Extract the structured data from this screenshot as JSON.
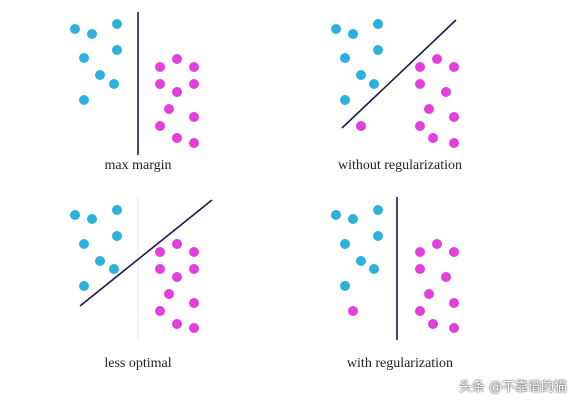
{
  "colors": {
    "class_a": "#2bb1dc",
    "class_b": "#e23fdc",
    "line": "#1a1a4a",
    "faint_line": "#e6e6e6"
  },
  "panels": [
    {
      "id": "max-margin",
      "caption": "max margin",
      "boundary": "vertical",
      "points_a": [
        [
          75,
          29
        ],
        [
          92,
          34
        ],
        [
          117,
          24
        ],
        [
          84,
          58
        ],
        [
          117,
          50
        ],
        [
          100,
          75
        ],
        [
          114,
          84
        ],
        [
          84,
          100
        ]
      ],
      "points_b": [
        [
          160,
          67
        ],
        [
          177,
          59
        ],
        [
          194,
          67
        ],
        [
          160,
          84
        ],
        [
          194,
          84
        ],
        [
          177,
          92
        ],
        [
          169,
          109
        ],
        [
          194,
          117
        ],
        [
          160,
          126
        ],
        [
          177,
          138
        ],
        [
          194,
          143
        ]
      ]
    },
    {
      "id": "without-regularization",
      "caption": "without regularization",
      "boundary": "diagonal",
      "points_a": [
        [
          336,
          29
        ],
        [
          353,
          34
        ],
        [
          378,
          24
        ],
        [
          345,
          58
        ],
        [
          378,
          50
        ],
        [
          361,
          75
        ],
        [
          374,
          84
        ],
        [
          345,
          100
        ]
      ],
      "points_b": [
        [
          361,
          126
        ],
        [
          420,
          67
        ],
        [
          437,
          59
        ],
        [
          454,
          67
        ],
        [
          420,
          84
        ],
        [
          446,
          92
        ],
        [
          429,
          109
        ],
        [
          454,
          117
        ],
        [
          420,
          126
        ],
        [
          433,
          138
        ],
        [
          454,
          143
        ]
      ]
    },
    {
      "id": "less-optimal",
      "caption": "less optimal",
      "boundary": "diagonal",
      "points_a": [
        [
          75,
          215
        ],
        [
          92,
          219
        ],
        [
          117,
          210
        ],
        [
          84,
          244
        ],
        [
          117,
          236
        ],
        [
          100,
          261
        ],
        [
          114,
          269
        ],
        [
          84,
          286
        ]
      ],
      "points_b": [
        [
          160,
          252
        ],
        [
          177,
          244
        ],
        [
          194,
          252
        ],
        [
          160,
          269
        ],
        [
          194,
          269
        ],
        [
          177,
          277
        ],
        [
          169,
          294
        ],
        [
          194,
          303
        ],
        [
          160,
          311
        ],
        [
          177,
          324
        ],
        [
          194,
          328
        ]
      ]
    },
    {
      "id": "with-regularization",
      "caption": "with regularization",
      "boundary": "vertical",
      "points_a": [
        [
          336,
          215
        ],
        [
          353,
          219
        ],
        [
          378,
          210
        ],
        [
          345,
          244
        ],
        [
          378,
          236
        ],
        [
          361,
          261
        ],
        [
          374,
          269
        ],
        [
          345,
          286
        ]
      ],
      "points_b": [
        [
          353,
          311
        ],
        [
          420,
          252
        ],
        [
          437,
          244
        ],
        [
          454,
          252
        ],
        [
          420,
          269
        ],
        [
          446,
          277
        ],
        [
          429,
          294
        ],
        [
          454,
          303
        ],
        [
          420,
          311
        ],
        [
          433,
          324
        ],
        [
          454,
          328
        ]
      ]
    }
  ],
  "watermark": "头条 @不靠谱的猫"
}
